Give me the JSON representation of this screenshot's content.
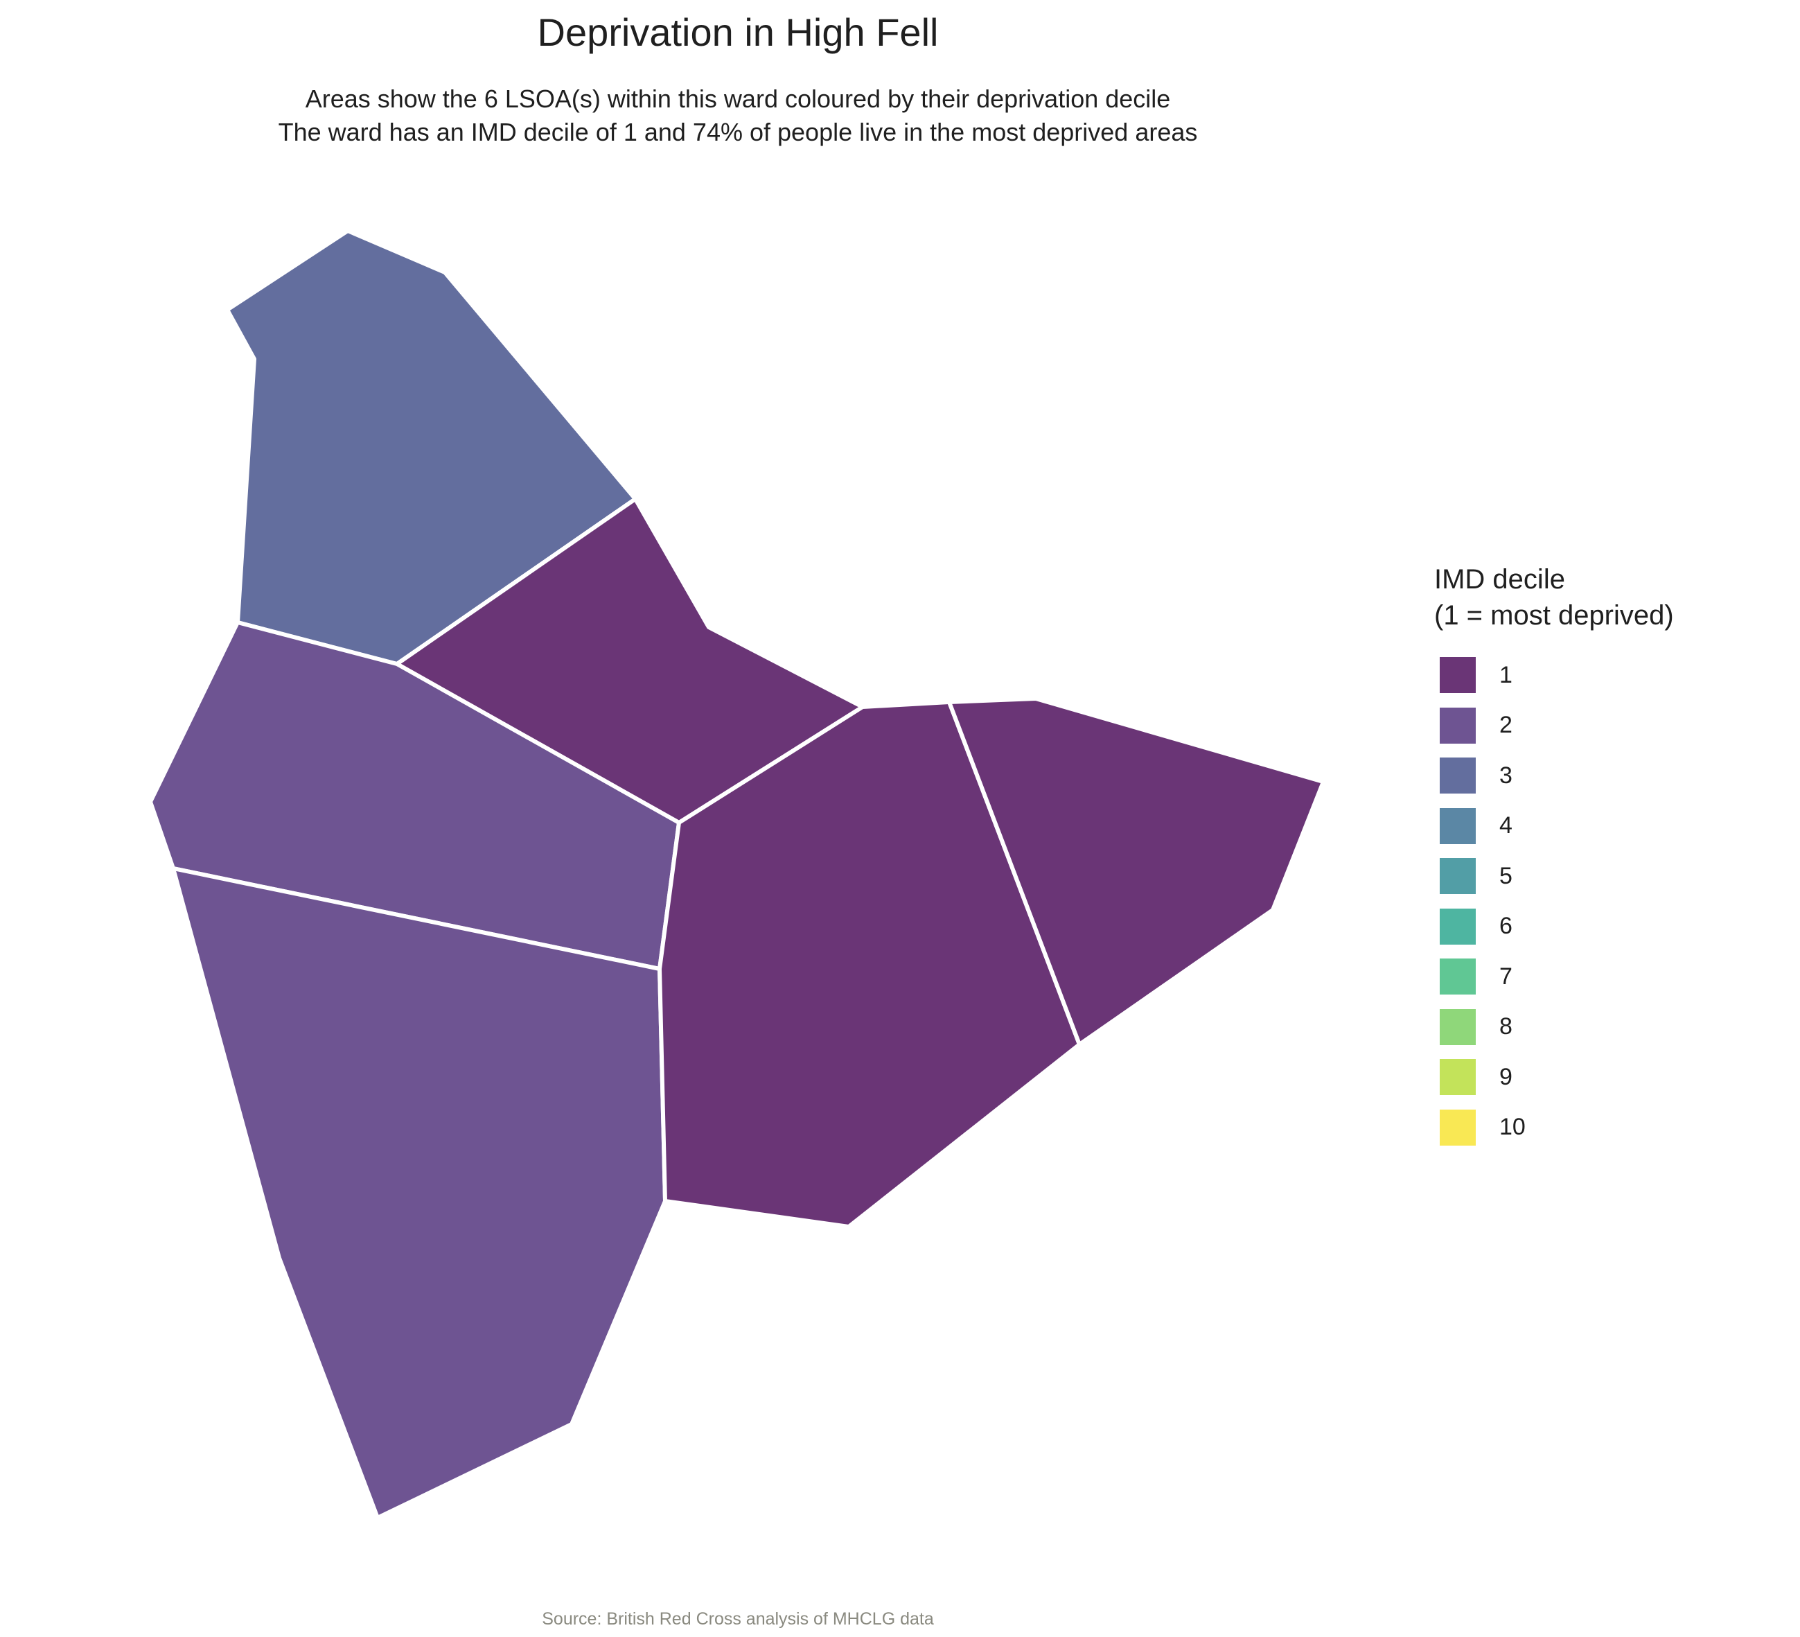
{
  "title": "Deprivation in High Fell",
  "subtitle_line1": "Areas show the 6 LSOA(s) within this ward coloured by their deprivation decile",
  "subtitle_line2": "The ward has an IMD decile of 1 and 74% of people live in the most deprived areas",
  "source": "Source: British Red Cross analysis of MHCLG data",
  "legend": {
    "title_line1": "IMD decile",
    "title_line2": "(1 = most deprived)",
    "items": [
      {
        "label": "1",
        "color": "#6a3576"
      },
      {
        "label": "2",
        "color": "#6e5492"
      },
      {
        "label": "3",
        "color": "#636e9e"
      },
      {
        "label": "4",
        "color": "#5b87a5"
      },
      {
        "label": "5",
        "color": "#529ea6"
      },
      {
        "label": "6",
        "color": "#4eb5a1"
      },
      {
        "label": "7",
        "color": "#60c794"
      },
      {
        "label": "8",
        "color": "#8fd77a"
      },
      {
        "label": "9",
        "color": "#c3e35a"
      },
      {
        "label": "10",
        "color": "#f9e854"
      }
    ]
  },
  "areas": [
    {
      "name": "lsoa-north",
      "decile": 3
    },
    {
      "name": "lsoa-centre-north",
      "decile": 1
    },
    {
      "name": "lsoa-west-middle",
      "decile": 2
    },
    {
      "name": "lsoa-south-west",
      "decile": 2
    },
    {
      "name": "lsoa-south-centre",
      "decile": 1
    },
    {
      "name": "lsoa-east",
      "decile": 1
    }
  ]
}
